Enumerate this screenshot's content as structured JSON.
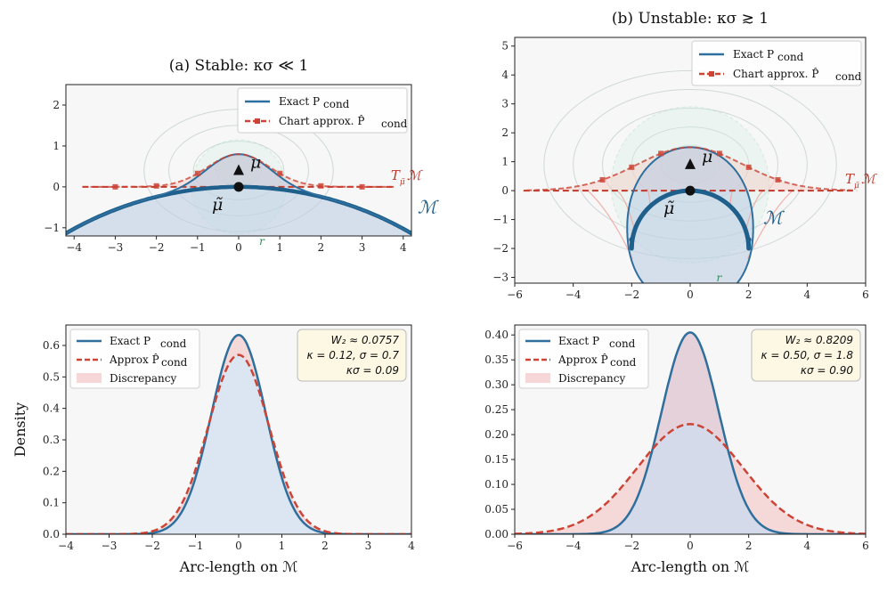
{
  "chart_data": [
    {
      "id": "a_top",
      "type": "line",
      "title": "(a)  Stable:  κσ ≪ 1",
      "xlim": [
        -4.2,
        4.2
      ],
      "ylim": [
        -1.2,
        2.5
      ],
      "xticks": [
        "−4",
        "−3",
        "−2",
        "−1",
        "0",
        "1",
        "2",
        "3",
        "4"
      ],
      "xtick_values": [
        -4,
        -3,
        -2,
        -1,
        0,
        1,
        2,
        3,
        4
      ],
      "yticks": [
        "−1",
        "0",
        "1",
        "2"
      ],
      "ytick_values": [
        -1,
        0,
        1,
        2
      ],
      "kappa": 0.12,
      "manifold_label": "ℳ",
      "tangent_label": "T",
      "tangent_sub": "μ̃",
      "tangent_suffix": "ℳ",
      "mu_label": "μ",
      "mu_tilde_label": "μ̃",
      "r_label": "r",
      "legend": [
        "Exact P",
        "Chart approx. P̂"
      ],
      "legend_sub": "cond",
      "series": [
        {
          "name": "Exact",
          "peak": 0.8,
          "sigma": 0.7
        },
        {
          "name": "Chart approx.",
          "peak": 0.8,
          "sigma": 0.75
        }
      ]
    },
    {
      "id": "b_top",
      "type": "line",
      "title": "(b)  Unstable:  κσ ≳ 1",
      "xlim": [
        -6,
        6
      ],
      "ylim": [
        -3.2,
        5.3
      ],
      "xticks": [
        "−6",
        "−4",
        "−2",
        "0",
        "2",
        "4",
        "6"
      ],
      "xtick_values": [
        -6,
        -4,
        -2,
        0,
        2,
        4,
        6
      ],
      "yticks": [
        "−3",
        "−2",
        "−1",
        "0",
        "1",
        "2",
        "3",
        "4",
        "5"
      ],
      "ytick_values": [
        -3,
        -2,
        -1,
        0,
        1,
        2,
        3,
        4,
        5
      ],
      "kappa": 0.5,
      "manifold_label": "ℳ",
      "tangent_label": "T",
      "tangent_sub": "μ̃",
      "tangent_suffix": "ℳ",
      "mu_label": "μ",
      "mu_tilde_label": "μ̃",
      "r_label": "r",
      "legend": [
        "Exact P",
        "Chart approx. P̂"
      ],
      "legend_sub": "cond",
      "series": [
        {
          "name": "Exact",
          "peak": 1.5,
          "sigma": 1.8
        },
        {
          "name": "Chart approx.",
          "peak": 1.5,
          "sigma": 1.8
        }
      ]
    },
    {
      "id": "a_bottom",
      "type": "area",
      "xlabel": "Arc-length on ℳ",
      "ylabel": "Density",
      "xlim": [
        -4,
        4
      ],
      "ylim": [
        0,
        0.665
      ],
      "xticks": [
        "−4",
        "−3",
        "−2",
        "−1",
        "0",
        "1",
        "2",
        "3",
        "4"
      ],
      "xtick_values": [
        -4,
        -3,
        -2,
        -1,
        0,
        1,
        2,
        3,
        4
      ],
      "yticks": [
        "0.0",
        "0.1",
        "0.2",
        "0.3",
        "0.4",
        "0.5",
        "0.6"
      ],
      "ytick_values": [
        0,
        0.1,
        0.2,
        0.3,
        0.4,
        0.5,
        0.6
      ],
      "legend": [
        "Exact  P",
        "Approx  P̂",
        "Discrepancy"
      ],
      "legend_sub": "cond",
      "stats": [
        "W₂ ≈ 0.0757",
        "κ = 0.12,  σ = 0.7",
        "κσ = 0.09"
      ],
      "series": [
        {
          "name": "Exact",
          "peak": 0.633,
          "sigma": 0.63
        },
        {
          "name": "Approx",
          "peak": 0.57,
          "sigma": 0.7
        }
      ]
    },
    {
      "id": "b_bottom",
      "type": "area",
      "xlabel": "Arc-length on ℳ",
      "ylabel": "",
      "xlim": [
        -6,
        6
      ],
      "ylim": [
        0,
        0.42
      ],
      "xticks": [
        "−6",
        "−4",
        "−2",
        "0",
        "2",
        "4",
        "6"
      ],
      "xtick_values": [
        -6,
        -4,
        -2,
        0,
        2,
        4,
        6
      ],
      "yticks": [
        "0.00",
        "0.05",
        "0.10",
        "0.15",
        "0.20",
        "0.25",
        "0.30",
        "0.35",
        "0.40"
      ],
      "ytick_values": [
        0,
        0.05,
        0.1,
        0.15,
        0.2,
        0.25,
        0.3,
        0.35,
        0.4
      ],
      "legend": [
        "Exact  P",
        "Approx  P̂",
        "Discrepancy"
      ],
      "legend_sub": "cond",
      "stats": [
        "W₂ ≈ 0.8209",
        "κ = 0.50,  σ = 1.8",
        "κσ = 0.90"
      ],
      "series": [
        {
          "name": "Exact",
          "peak": 0.405,
          "sigma": 0.98
        },
        {
          "name": "Approx",
          "peak": 0.221,
          "sigma": 1.8
        }
      ]
    }
  ],
  "colors": {
    "exact": "#2e6f9e",
    "approx": "#cc4436",
    "manifold": "#1f5f8b",
    "tangent": "#c0392b",
    "discrepancy": "#f4cccc",
    "fill_blue": "#d8e8f5",
    "stats_bg": "#fdf8e4",
    "panel_bg": "#f7f7f7",
    "r_green": "#2e8b57"
  }
}
